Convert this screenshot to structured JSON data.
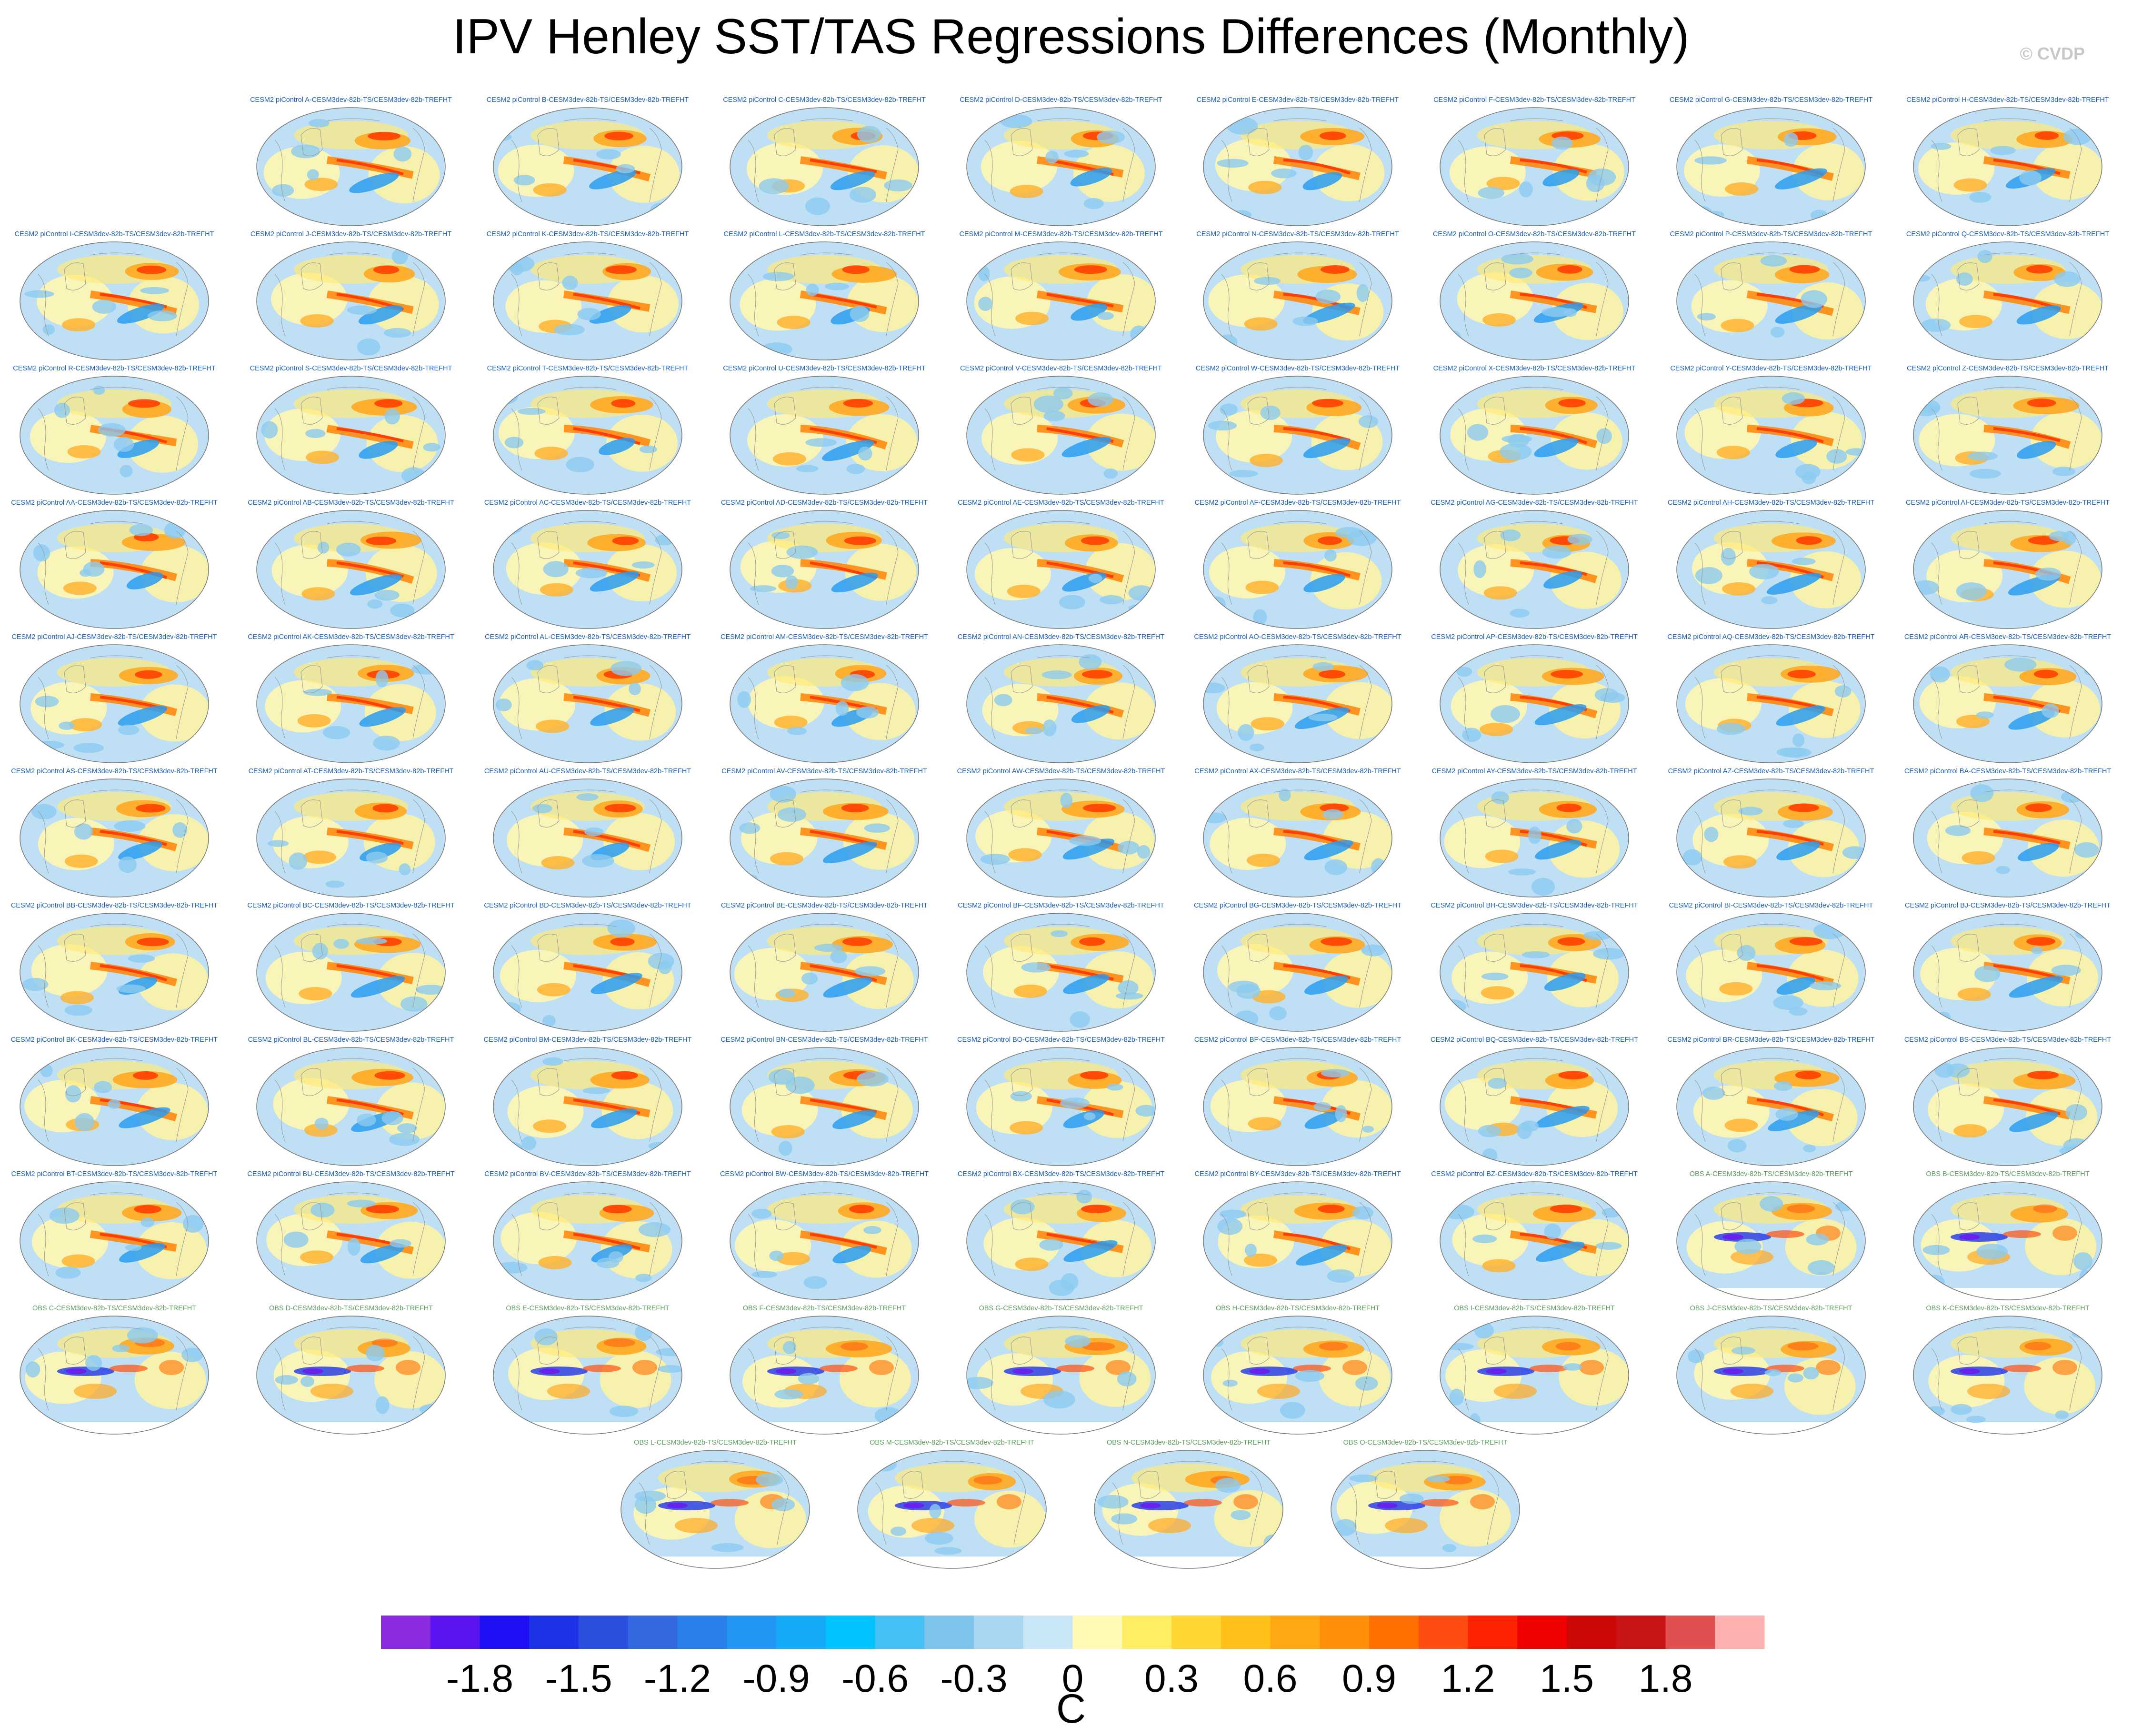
{
  "title": "IPV Henley SST/TAS Regressions Differences (Monthly)",
  "watermark": "© CVDP",
  "panels": [
    {
      "label": "CESM2 piControl A-CESM3dev-82b-TS/CESM3dev-82b-TREFHT",
      "kind": "cesm"
    },
    {
      "label": "CESM2 piControl B-CESM3dev-82b-TS/CESM3dev-82b-TREFHT",
      "kind": "cesm"
    },
    {
      "label": "CESM2 piControl C-CESM3dev-82b-TS/CESM3dev-82b-TREFHT",
      "kind": "cesm"
    },
    {
      "label": "CESM2 piControl D-CESM3dev-82b-TS/CESM3dev-82b-TREFHT",
      "kind": "cesm"
    },
    {
      "label": "CESM2 piControl E-CESM3dev-82b-TS/CESM3dev-82b-TREFHT",
      "kind": "cesm"
    },
    {
      "label": "CESM2 piControl F-CESM3dev-82b-TS/CESM3dev-82b-TREFHT",
      "kind": "cesm"
    },
    {
      "label": "CESM2 piControl G-CESM3dev-82b-TS/CESM3dev-82b-TREFHT",
      "kind": "cesm"
    },
    {
      "label": "CESM2 piControl H-CESM3dev-82b-TS/CESM3dev-82b-TREFHT",
      "kind": "cesm"
    },
    {
      "label": "CESM2 piControl I-CESM3dev-82b-TS/CESM3dev-82b-TREFHT",
      "kind": "cesm"
    },
    {
      "label": "CESM2 piControl J-CESM3dev-82b-TS/CESM3dev-82b-TREFHT",
      "kind": "cesm"
    },
    {
      "label": "CESM2 piControl K-CESM3dev-82b-TS/CESM3dev-82b-TREFHT",
      "kind": "cesm"
    },
    {
      "label": "CESM2 piControl L-CESM3dev-82b-TS/CESM3dev-82b-TREFHT",
      "kind": "cesm"
    },
    {
      "label": "CESM2 piControl M-CESM3dev-82b-TS/CESM3dev-82b-TREFHT",
      "kind": "cesm"
    },
    {
      "label": "CESM2 piControl N-CESM3dev-82b-TS/CESM3dev-82b-TREFHT",
      "kind": "cesm"
    },
    {
      "label": "CESM2 piControl O-CESM3dev-82b-TS/CESM3dev-82b-TREFHT",
      "kind": "cesm"
    },
    {
      "label": "CESM2 piControl P-CESM3dev-82b-TS/CESM3dev-82b-TREFHT",
      "kind": "cesm"
    },
    {
      "label": "CESM2 piControl Q-CESM3dev-82b-TS/CESM3dev-82b-TREFHT",
      "kind": "cesm"
    },
    {
      "label": "CESM2 piControl R-CESM3dev-82b-TS/CESM3dev-82b-TREFHT",
      "kind": "cesm"
    },
    {
      "label": "CESM2 piControl S-CESM3dev-82b-TS/CESM3dev-82b-TREFHT",
      "kind": "cesm"
    },
    {
      "label": "CESM2 piControl T-CESM3dev-82b-TS/CESM3dev-82b-TREFHT",
      "kind": "cesm"
    },
    {
      "label": "CESM2 piControl U-CESM3dev-82b-TS/CESM3dev-82b-TREFHT",
      "kind": "cesm"
    },
    {
      "label": "CESM2 piControl V-CESM3dev-82b-TS/CESM3dev-82b-TREFHT",
      "kind": "cesm"
    },
    {
      "label": "CESM2 piControl W-CESM3dev-82b-TS/CESM3dev-82b-TREFHT",
      "kind": "cesm"
    },
    {
      "label": "CESM2 piControl X-CESM3dev-82b-TS/CESM3dev-82b-TREFHT",
      "kind": "cesm"
    },
    {
      "label": "CESM2 piControl Y-CESM3dev-82b-TS/CESM3dev-82b-TREFHT",
      "kind": "cesm"
    },
    {
      "label": "CESM2 piControl Z-CESM3dev-82b-TS/CESM3dev-82b-TREFHT",
      "kind": "cesm"
    },
    {
      "label": "CESM2 piControl AA-CESM3dev-82b-TS/CESM3dev-82b-TREFHT",
      "kind": "cesm"
    },
    {
      "label": "CESM2 piControl AB-CESM3dev-82b-TS/CESM3dev-82b-TREFHT",
      "kind": "cesm"
    },
    {
      "label": "CESM2 piControl AC-CESM3dev-82b-TS/CESM3dev-82b-TREFHT",
      "kind": "cesm"
    },
    {
      "label": "CESM2 piControl AD-CESM3dev-82b-TS/CESM3dev-82b-TREFHT",
      "kind": "cesm"
    },
    {
      "label": "CESM2 piControl AE-CESM3dev-82b-TS/CESM3dev-82b-TREFHT",
      "kind": "cesm"
    },
    {
      "label": "CESM2 piControl AF-CESM3dev-82b-TS/CESM3dev-82b-TREFHT",
      "kind": "cesm"
    },
    {
      "label": "CESM2 piControl AG-CESM3dev-82b-TS/CESM3dev-82b-TREFHT",
      "kind": "cesm"
    },
    {
      "label": "CESM2 piControl AH-CESM3dev-82b-TS/CESM3dev-82b-TREFHT",
      "kind": "cesm"
    },
    {
      "label": "CESM2 piControl AI-CESM3dev-82b-TS/CESM3dev-82b-TREFHT",
      "kind": "cesm"
    },
    {
      "label": "CESM2 piControl AJ-CESM3dev-82b-TS/CESM3dev-82b-TREFHT",
      "kind": "cesm"
    },
    {
      "label": "CESM2 piControl AK-CESM3dev-82b-TS/CESM3dev-82b-TREFHT",
      "kind": "cesm"
    },
    {
      "label": "CESM2 piControl AL-CESM3dev-82b-TS/CESM3dev-82b-TREFHT",
      "kind": "cesm"
    },
    {
      "label": "CESM2 piControl AM-CESM3dev-82b-TS/CESM3dev-82b-TREFHT",
      "kind": "cesm"
    },
    {
      "label": "CESM2 piControl AN-CESM3dev-82b-TS/CESM3dev-82b-TREFHT",
      "kind": "cesm"
    },
    {
      "label": "CESM2 piControl AO-CESM3dev-82b-TS/CESM3dev-82b-TREFHT",
      "kind": "cesm"
    },
    {
      "label": "CESM2 piControl AP-CESM3dev-82b-TS/CESM3dev-82b-TREFHT",
      "kind": "cesm"
    },
    {
      "label": "CESM2 piControl AQ-CESM3dev-82b-TS/CESM3dev-82b-TREFHT",
      "kind": "cesm"
    },
    {
      "label": "CESM2 piControl AR-CESM3dev-82b-TS/CESM3dev-82b-TREFHT",
      "kind": "cesm"
    },
    {
      "label": "CESM2 piControl AS-CESM3dev-82b-TS/CESM3dev-82b-TREFHT",
      "kind": "cesm"
    },
    {
      "label": "CESM2 piControl AT-CESM3dev-82b-TS/CESM3dev-82b-TREFHT",
      "kind": "cesm"
    },
    {
      "label": "CESM2 piControl AU-CESM3dev-82b-TS/CESM3dev-82b-TREFHT",
      "kind": "cesm"
    },
    {
      "label": "CESM2 piControl AV-CESM3dev-82b-TS/CESM3dev-82b-TREFHT",
      "kind": "cesm"
    },
    {
      "label": "CESM2 piControl AW-CESM3dev-82b-TS/CESM3dev-82b-TREFHT",
      "kind": "cesm"
    },
    {
      "label": "CESM2 piControl AX-CESM3dev-82b-TS/CESM3dev-82b-TREFHT",
      "kind": "cesm"
    },
    {
      "label": "CESM2 piControl AY-CESM3dev-82b-TS/CESM3dev-82b-TREFHT",
      "kind": "cesm"
    },
    {
      "label": "CESM2 piControl AZ-CESM3dev-82b-TS/CESM3dev-82b-TREFHT",
      "kind": "cesm"
    },
    {
      "label": "CESM2 piControl BA-CESM3dev-82b-TS/CESM3dev-82b-TREFHT",
      "kind": "cesm"
    },
    {
      "label": "CESM2 piControl BB-CESM3dev-82b-TS/CESM3dev-82b-TREFHT",
      "kind": "cesm"
    },
    {
      "label": "CESM2 piControl BC-CESM3dev-82b-TS/CESM3dev-82b-TREFHT",
      "kind": "cesm"
    },
    {
      "label": "CESM2 piControl BD-CESM3dev-82b-TS/CESM3dev-82b-TREFHT",
      "kind": "cesm"
    },
    {
      "label": "CESM2 piControl BE-CESM3dev-82b-TS/CESM3dev-82b-TREFHT",
      "kind": "cesm"
    },
    {
      "label": "CESM2 piControl BF-CESM3dev-82b-TS/CESM3dev-82b-TREFHT",
      "kind": "cesm"
    },
    {
      "label": "CESM2 piControl BG-CESM3dev-82b-TS/CESM3dev-82b-TREFHT",
      "kind": "cesm"
    },
    {
      "label": "CESM2 piControl BH-CESM3dev-82b-TS/CESM3dev-82b-TREFHT",
      "kind": "cesm"
    },
    {
      "label": "CESM2 piControl BI-CESM3dev-82b-TS/CESM3dev-82b-TREFHT",
      "kind": "cesm"
    },
    {
      "label": "CESM2 piControl BJ-CESM3dev-82b-TS/CESM3dev-82b-TREFHT",
      "kind": "cesm"
    },
    {
      "label": "CESM2 piControl BK-CESM3dev-82b-TS/CESM3dev-82b-TREFHT",
      "kind": "cesm"
    },
    {
      "label": "CESM2 piControl BL-CESM3dev-82b-TS/CESM3dev-82b-TREFHT",
      "kind": "cesm"
    },
    {
      "label": "CESM2 piControl BM-CESM3dev-82b-TS/CESM3dev-82b-TREFHT",
      "kind": "cesm"
    },
    {
      "label": "CESM2 piControl BN-CESM3dev-82b-TS/CESM3dev-82b-TREFHT",
      "kind": "cesm"
    },
    {
      "label": "CESM2 piControl BO-CESM3dev-82b-TS/CESM3dev-82b-TREFHT",
      "kind": "cesm"
    },
    {
      "label": "CESM2 piControl BP-CESM3dev-82b-TS/CESM3dev-82b-TREFHT",
      "kind": "cesm"
    },
    {
      "label": "CESM2 piControl BQ-CESM3dev-82b-TS/CESM3dev-82b-TREFHT",
      "kind": "cesm"
    },
    {
      "label": "CESM2 piControl BR-CESM3dev-82b-TS/CESM3dev-82b-TREFHT",
      "kind": "cesm"
    },
    {
      "label": "CESM2 piControl BS-CESM3dev-82b-TS/CESM3dev-82b-TREFHT",
      "kind": "cesm"
    },
    {
      "label": "CESM2 piControl BT-CESM3dev-82b-TS/CESM3dev-82b-TREFHT",
      "kind": "cesm"
    },
    {
      "label": "CESM2 piControl BU-CESM3dev-82b-TS/CESM3dev-82b-TREFHT",
      "kind": "cesm"
    },
    {
      "label": "CESM2 piControl BV-CESM3dev-82b-TS/CESM3dev-82b-TREFHT",
      "kind": "cesm"
    },
    {
      "label": "CESM2 piControl BW-CESM3dev-82b-TS/CESM3dev-82b-TREFHT",
      "kind": "cesm"
    },
    {
      "label": "CESM2 piControl BX-CESM3dev-82b-TS/CESM3dev-82b-TREFHT",
      "kind": "cesm"
    },
    {
      "label": "CESM2 piControl BY-CESM3dev-82b-TS/CESM3dev-82b-TREFHT",
      "kind": "cesm"
    },
    {
      "label": "CESM2 piControl BZ-CESM3dev-82b-TS/CESM3dev-82b-TREFHT",
      "kind": "cesm"
    },
    {
      "label": "OBS A-CESM3dev-82b-TS/CESM3dev-82b-TREFHT",
      "kind": "obs"
    },
    {
      "label": "OBS B-CESM3dev-82b-TS/CESM3dev-82b-TREFHT",
      "kind": "obs"
    },
    {
      "label": "OBS C-CESM3dev-82b-TS/CESM3dev-82b-TREFHT",
      "kind": "obs"
    },
    {
      "label": "OBS D-CESM3dev-82b-TS/CESM3dev-82b-TREFHT",
      "kind": "obs"
    },
    {
      "label": "OBS E-CESM3dev-82b-TS/CESM3dev-82b-TREFHT",
      "kind": "obs"
    },
    {
      "label": "OBS F-CESM3dev-82b-TS/CESM3dev-82b-TREFHT",
      "kind": "obs"
    },
    {
      "label": "OBS G-CESM3dev-82b-TS/CESM3dev-82b-TREFHT",
      "kind": "obs"
    },
    {
      "label": "OBS H-CESM3dev-82b-TS/CESM3dev-82b-TREFHT",
      "kind": "obs"
    },
    {
      "label": "OBS I-CESM3dev-82b-TS/CESM3dev-82b-TREFHT",
      "kind": "obs"
    },
    {
      "label": "OBS J-CESM3dev-82b-TS/CESM3dev-82b-TREFHT",
      "kind": "obs"
    },
    {
      "label": "OBS K-CESM3dev-82b-TS/CESM3dev-82b-TREFHT",
      "kind": "obs"
    },
    {
      "label": "OBS L-CESM3dev-82b-TS/CESM3dev-82b-TREFHT",
      "kind": "obs"
    },
    {
      "label": "OBS M-CESM3dev-82b-TS/CESM3dev-82b-TREFHT",
      "kind": "obs"
    },
    {
      "label": "OBS N-CESM3dev-82b-TS/CESM3dev-82b-TREFHT",
      "kind": "obs"
    },
    {
      "label": "OBS O-CESM3dev-82b-TS/CESM3dev-82b-TREFHT",
      "kind": "obs"
    }
  ],
  "colorbar": {
    "units": "C",
    "ticks": [
      "-1.8",
      "-1.5",
      "-1.2",
      "-0.9",
      "-0.6",
      "-0.3",
      "0",
      "0.3",
      "0.6",
      "0.9",
      "1.2",
      "1.5",
      "1.8"
    ],
    "colors": [
      "#8a2be2",
      "#5a14f0",
      "#1f0ff5",
      "#1e32e8",
      "#2a50dd",
      "#3268e0",
      "#2a80ea",
      "#2296f2",
      "#14aaf5",
      "#00c2ff",
      "#46c0f4",
      "#7cc4ec",
      "#a8d6f0",
      "#c8e6f6",
      "#fffbb4",
      "#ffee64",
      "#ffd732",
      "#ffc01a",
      "#ffa812",
      "#ff9008",
      "#ff7000",
      "#ff4c10",
      "#ff2200",
      "#f00000",
      "#cc0808",
      "#c81414",
      "#e05050",
      "#ffb0b0"
    ]
  },
  "palette": {
    "land_blue": "#c3e1f4",
    "label_cesm": "#1a5fb4",
    "label_obs": "#5f9b5f"
  }
}
